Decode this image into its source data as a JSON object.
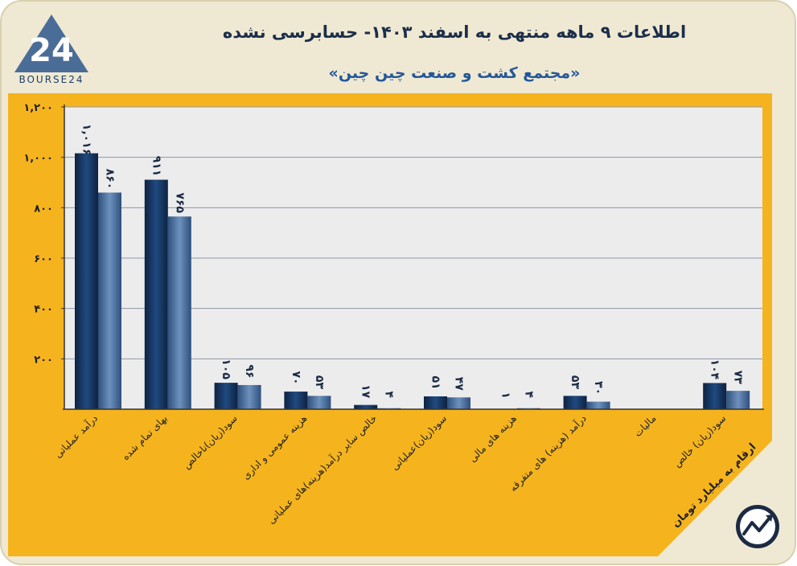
{
  "header": {
    "title": "اطلاعات ۹ ماهه منتهی به اسفند ۱۴۰۳- حسابرسی نشده",
    "subtitle": "«مجتمع کشت و صنعت چین چین»",
    "logo_text": "BOURSE24",
    "logo_digits": "24"
  },
  "note": "ارقام به میلیارد تومان",
  "colors": {
    "background": "#f5b41e",
    "frame": "#efe9d3",
    "series_1": "#173a66",
    "series_2": "#4a6d98",
    "text_dark": "#1c2e4a",
    "subtitle": "#23579a"
  },
  "icons": [
    "bourse24-logo-icon",
    "trend-chart-icon"
  ],
  "chart_data": {
    "type": "bar",
    "title": "اطلاعات ۹ ماهه منتهی به اسفند ۱۴۰۳- حسابرسی نشده",
    "subtitle": "«مجتمع کشت و صنعت چین چین»",
    "categories": [
      "درآمد عملیاتی",
      "بهای تمام شده",
      "سود(زیان)ناخالص",
      "هزینه عمومی و اداری",
      "خالص سایر درآمد(هزینه)های عملیاتی",
      "سود(زیان)عملیاتی",
      "هزینه های مالی",
      "درآمد (هزینه) های متفرقه",
      "مالیات",
      "سود(زیان) خالص"
    ],
    "series": [
      {
        "values": [
          1016,
          911,
          105,
          70,
          17,
          51,
          1,
          53,
          0,
          104
        ],
        "labels": [
          "۱,۰۱۶",
          "۹۱۱",
          "۱۰۵",
          "۷۰",
          "۱۷",
          "۵۱",
          "۱",
          "۵۳",
          "",
          "۱۰۴"
        ]
      },
      {
        "values": [
          860,
          765,
          96,
          53,
          4,
          47,
          4,
          30,
          0,
          73
        ],
        "labels": [
          "۸۶۰",
          "۷۶۵",
          "۹۶",
          "۵۳",
          "۴",
          "۴۷",
          "۴",
          "۳۰",
          "",
          "۷۳"
        ]
      }
    ],
    "yticks": [
      200,
      400,
      600,
      800,
      1000,
      1200
    ],
    "ytick_labels": [
      "۲۰۰",
      "۴۰۰",
      "۶۰۰",
      "۸۰۰",
      "۱,۰۰۰",
      "۱,۲۰۰"
    ],
    "ylim": [
      0,
      1200
    ],
    "xlabel": "",
    "ylabel": "",
    "grid": true,
    "legend": "none"
  }
}
